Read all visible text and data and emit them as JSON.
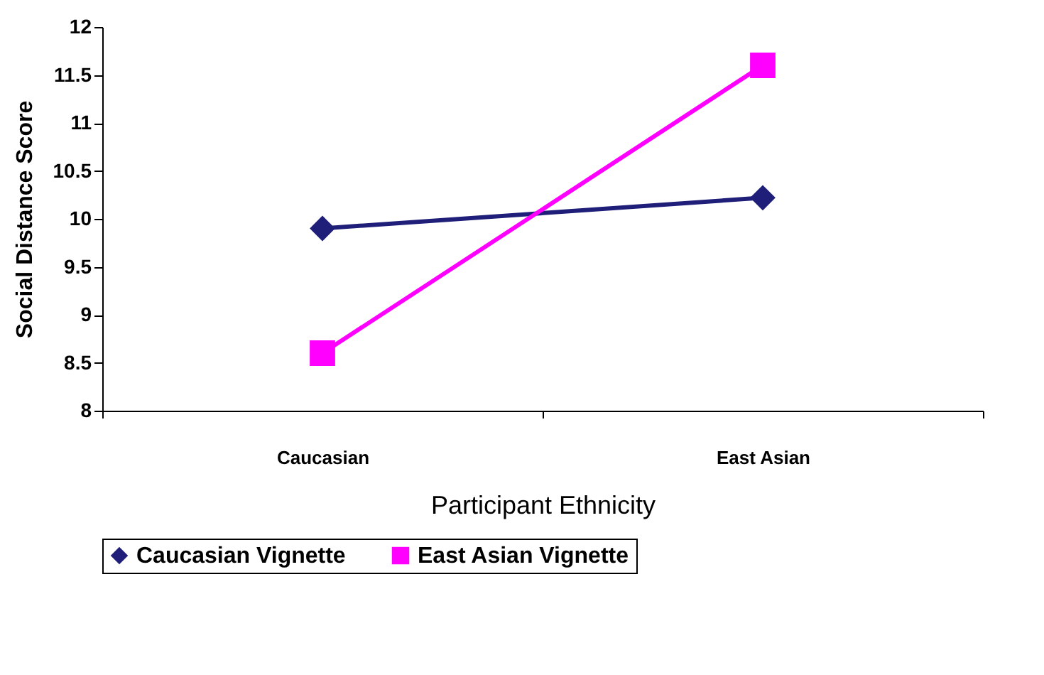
{
  "chart_data": {
    "type": "line",
    "xlabel": "Participant Ethnicity",
    "ylabel": "Social Distance Score",
    "categories": [
      "Caucasian",
      "East Asian"
    ],
    "series": [
      {
        "name": "Caucasian Vignette",
        "color": "#1f1f7a",
        "marker": "diamond",
        "values": [
          9.9,
          10.22
        ]
      },
      {
        "name": "East Asian Vignette",
        "color": "#ff00ff",
        "marker": "square",
        "values": [
          8.6,
          11.6
        ]
      }
    ],
    "ylim": [
      8,
      12
    ],
    "yticks": [
      8,
      8.5,
      9,
      9.5,
      10,
      10.5,
      11,
      11.5,
      12
    ],
    "grid": false,
    "legend": "bottom"
  }
}
